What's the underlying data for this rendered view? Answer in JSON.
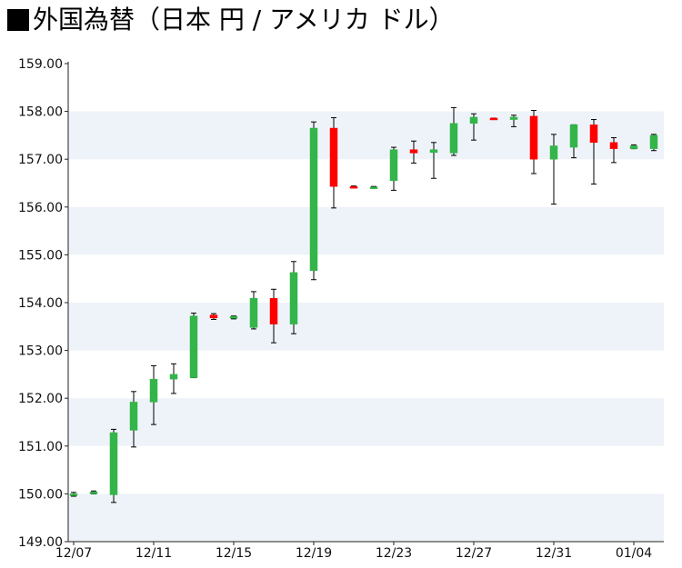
{
  "title": "外国為替（日本 円 / アメリカ ドル）",
  "chart_data": {
    "type": "candlestick",
    "title": "外国為替（日本 円 / アメリカ ドル）",
    "xlabel": "",
    "ylabel": "",
    "ylim": [
      149.0,
      159.0
    ],
    "y_ticks": [
      "149.00",
      "150.00",
      "151.00",
      "152.00",
      "153.00",
      "154.00",
      "155.00",
      "156.00",
      "157.00",
      "158.00",
      "159.00"
    ],
    "x_ticks": [
      "12/07",
      "12/11",
      "12/15",
      "12/19",
      "12/23",
      "12/27",
      "12/31",
      "01/04"
    ],
    "grid": "alternating horizontal bands",
    "colors": {
      "up": "#33b54a",
      "down": "#ff0000",
      "band": "#eef3f9",
      "wick": "#000000"
    },
    "candles": [
      {
        "date": "12/07",
        "open": 149.97,
        "high": 150.03,
        "low": 149.95,
        "close": 150.0
      },
      {
        "date": "12/08",
        "open": 150.02,
        "high": 150.06,
        "low": 150.0,
        "close": 150.04
      },
      {
        "date": "12/09",
        "open": 149.98,
        "high": 151.35,
        "low": 149.82,
        "close": 151.28
      },
      {
        "date": "12/10",
        "open": 151.33,
        "high": 152.14,
        "low": 150.98,
        "close": 151.92
      },
      {
        "date": "12/11",
        "open": 151.92,
        "high": 152.68,
        "low": 151.45,
        "close": 152.4
      },
      {
        "date": "12/12",
        "open": 152.4,
        "high": 152.72,
        "low": 152.1,
        "close": 152.5
      },
      {
        "date": "12/13",
        "open": 152.43,
        "high": 153.78,
        "low": 152.43,
        "close": 153.72
      },
      {
        "date": "12/14",
        "open": 153.74,
        "high": 153.77,
        "low": 153.65,
        "close": 153.68
      },
      {
        "date": "12/15",
        "open": 153.68,
        "high": 153.72,
        "low": 153.66,
        "close": 153.71
      },
      {
        "date": "12/16",
        "open": 153.48,
        "high": 154.23,
        "low": 153.45,
        "close": 154.09
      },
      {
        "date": "12/17",
        "open": 154.09,
        "high": 154.28,
        "low": 153.16,
        "close": 153.55
      },
      {
        "date": "12/18",
        "open": 153.55,
        "high": 154.86,
        "low": 153.35,
        "close": 154.63
      },
      {
        "date": "12/19",
        "open": 154.67,
        "high": 157.78,
        "low": 154.48,
        "close": 157.65
      },
      {
        "date": "12/20",
        "open": 157.65,
        "high": 157.87,
        "low": 155.98,
        "close": 156.43
      },
      {
        "date": "12/21",
        "open": 156.43,
        "high": 156.44,
        "low": 156.41,
        "close": 156.42
      },
      {
        "date": "12/22",
        "open": 156.41,
        "high": 156.43,
        "low": 156.4,
        "close": 156.42
      },
      {
        "date": "12/23",
        "open": 156.55,
        "high": 157.25,
        "low": 156.35,
        "close": 157.2
      },
      {
        "date": "12/24",
        "open": 157.2,
        "high": 157.38,
        "low": 156.92,
        "close": 157.13
      },
      {
        "date": "12/25",
        "open": 157.14,
        "high": 157.35,
        "low": 156.6,
        "close": 157.2
      },
      {
        "date": "12/26",
        "open": 157.13,
        "high": 158.08,
        "low": 157.08,
        "close": 157.75
      },
      {
        "date": "12/27",
        "open": 157.75,
        "high": 157.95,
        "low": 157.4,
        "close": 157.88
      },
      {
        "date": "12/28",
        "open": 157.86,
        "high": 157.86,
        "low": 157.84,
        "close": 157.85
      },
      {
        "date": "12/29",
        "open": 157.83,
        "high": 157.92,
        "low": 157.68,
        "close": 157.88
      },
      {
        "date": "12/30",
        "open": 157.9,
        "high": 158.02,
        "low": 156.7,
        "close": 157.0
      },
      {
        "date": "12/31",
        "open": 157.0,
        "high": 157.52,
        "low": 156.06,
        "close": 157.28
      },
      {
        "date": "01/01",
        "open": 157.25,
        "high": 157.72,
        "low": 157.03,
        "close": 157.72
      },
      {
        "date": "01/02",
        "open": 157.72,
        "high": 157.83,
        "low": 156.48,
        "close": 157.35
      },
      {
        "date": "01/03",
        "open": 157.35,
        "high": 157.45,
        "low": 156.93,
        "close": 157.22
      },
      {
        "date": "01/04",
        "open": 157.22,
        "high": 157.3,
        "low": 157.22,
        "close": 157.28
      },
      {
        "date": "01/05",
        "open": 157.22,
        "high": 157.52,
        "low": 157.18,
        "close": 157.5
      }
    ]
  }
}
